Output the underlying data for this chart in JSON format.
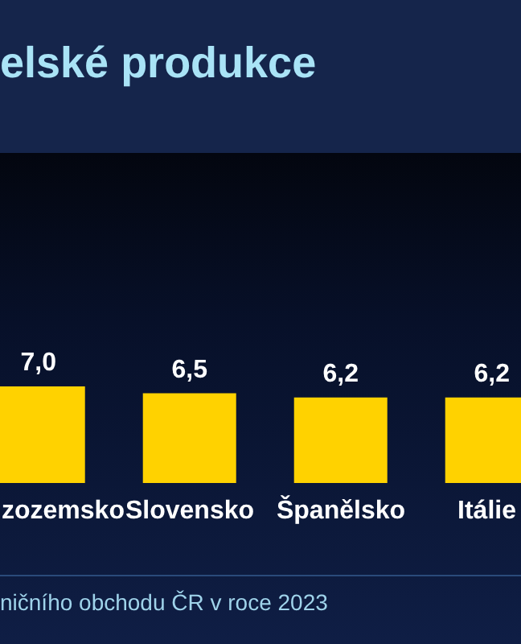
{
  "chart_data": {
    "type": "bar",
    "title": "elské produkce",
    "categories": [
      "zozemsko",
      "Slovensko",
      "Španělsko",
      "Itálie"
    ],
    "values": [
      7.0,
      6.5,
      6.2,
      6.2
    ],
    "color": "#ffd200",
    "value_labels": [
      "7,0",
      "6,5",
      "6,2",
      "6,2"
    ],
    "annotations": [
      "ničního obchodu ČR v roce 2023"
    ]
  }
}
